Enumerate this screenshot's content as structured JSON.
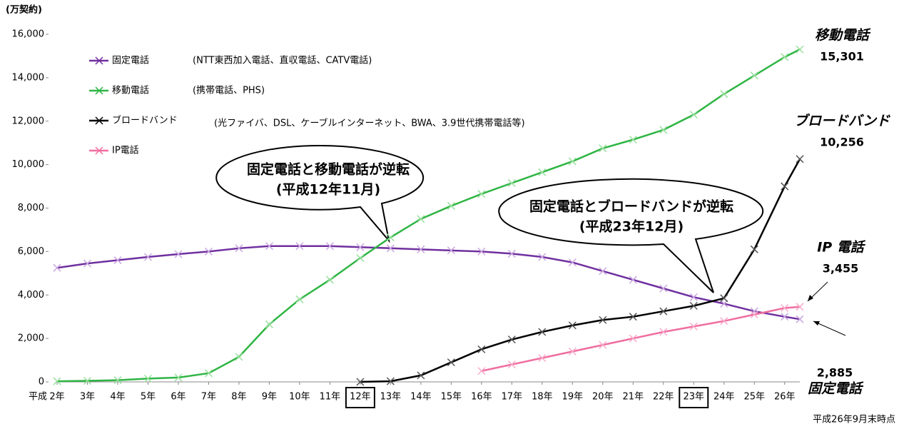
{
  "chart_data": {
    "type": "line",
    "unit_label": "(万契約)",
    "x_prefix": "平成",
    "note": "平成26年9月末時点",
    "x": [
      2,
      3,
      4,
      5,
      6,
      7,
      8,
      9,
      10,
      11,
      12,
      13,
      14,
      15,
      16,
      17,
      18,
      19,
      20,
      21,
      22,
      23,
      24,
      25,
      26,
      26.5
    ],
    "xlim": [
      2,
      26.5
    ],
    "xticks": [
      {
        "value": 2,
        "label": "2年"
      },
      {
        "value": 3,
        "label": "3年"
      },
      {
        "value": 4,
        "label": "4年"
      },
      {
        "value": 5,
        "label": "5年"
      },
      {
        "value": 6,
        "label": "6年"
      },
      {
        "value": 7,
        "label": "7年"
      },
      {
        "value": 8,
        "label": "8年"
      },
      {
        "value": 9,
        "label": "9年"
      },
      {
        "value": 10,
        "label": "10年"
      },
      {
        "value": 11,
        "label": "11年"
      },
      {
        "value": 12,
        "label": "12年",
        "boxed": true
      },
      {
        "value": 13,
        "label": "13年"
      },
      {
        "value": 14,
        "label": "14年"
      },
      {
        "value": 15,
        "label": "15年"
      },
      {
        "value": 16,
        "label": "16年"
      },
      {
        "value": 17,
        "label": "17年"
      },
      {
        "value": 18,
        "label": "18年"
      },
      {
        "value": 19,
        "label": "19年"
      },
      {
        "value": 20,
        "label": "20年"
      },
      {
        "value": 21,
        "label": "21年"
      },
      {
        "value": 22,
        "label": "22年"
      },
      {
        "value": 23,
        "label": "23年",
        "boxed": true
      },
      {
        "value": 24,
        "label": "24年"
      },
      {
        "value": 25,
        "label": "25年"
      },
      {
        "value": 26,
        "label": "26年"
      }
    ],
    "ylim": [
      0,
      16000
    ],
    "yticks": [
      0,
      {
        "value": 2000,
        "label": "2,000"
      },
      {
        "value": 4000,
        "label": "4,000"
      },
      {
        "value": 6000,
        "label": "6,000"
      },
      {
        "value": 8000,
        "label": "8,000"
      },
      {
        "value": 10000,
        "label": "10,000"
      },
      {
        "value": 12000,
        "label": "12,000"
      },
      {
        "value": 14000,
        "label": "14,000"
      },
      {
        "value": 16000,
        "label": "16,000"
      }
    ],
    "series": [
      {
        "name": "固定電話",
        "note": "(NTT東西加入電話、直収電話、CATV電話)",
        "color": "#7030a0",
        "marker_color": "#c9a6e0",
        "end_name": "固定電話",
        "end_label": "2,885",
        "values": [
          5250,
          5450,
          5600,
          5750,
          5880,
          6000,
          6150,
          6250,
          6250,
          6250,
          6200,
          6150,
          6100,
          6050,
          6000,
          5900,
          5750,
          5500,
          5100,
          4700,
          4300,
          3900,
          3600,
          3250,
          3000,
          2885
        ]
      },
      {
        "name": "移動電話",
        "note": "(携帯電話、PHS)",
        "color": "#2fb544",
        "marker_color": "#9adf9f",
        "end_name": "移動電話",
        "end_label": "15,301",
        "values": [
          30,
          50,
          80,
          150,
          200,
          400,
          1150,
          2650,
          3800,
          4700,
          5700,
          6650,
          7500,
          8100,
          8650,
          9150,
          9650,
          10150,
          10750,
          11150,
          11600,
          12300,
          13250,
          14100,
          14950,
          15301
        ]
      },
      {
        "name": "ブロードバンド",
        "note": "(光ファイバ、DSL、ケーブルインターネット、BWA、3.9世代携帯電話等)",
        "color": "#000000",
        "marker_color": "#555555",
        "end_name": "ブロードバンド",
        "end_label": "10,256",
        "values": [
          null,
          null,
          null,
          null,
          null,
          null,
          null,
          null,
          null,
          null,
          0,
          30,
          300,
          900,
          1500,
          1950,
          2300,
          2600,
          2850,
          3000,
          3250,
          3500,
          3850,
          6100,
          9000,
          10256
        ]
      },
      {
        "name": "IP電話",
        "color": "#f06ea0",
        "marker_color": "#f7aacb",
        "end_name": "IP 電話",
        "end_label": "3,455",
        "values": [
          null,
          null,
          null,
          null,
          null,
          null,
          null,
          null,
          null,
          null,
          null,
          null,
          null,
          null,
          500,
          800,
          1100,
          1400,
          1700,
          2000,
          2300,
          2550,
          2800,
          3100,
          3400,
          3455
        ]
      }
    ],
    "annotations": [
      {
        "text": "固定電話と移動電話が逆転",
        "sub": "(平成12年11月)"
      },
      {
        "text": "固定電話とブロードバンドが逆転",
        "sub": "(平成23年12月)"
      }
    ]
  }
}
